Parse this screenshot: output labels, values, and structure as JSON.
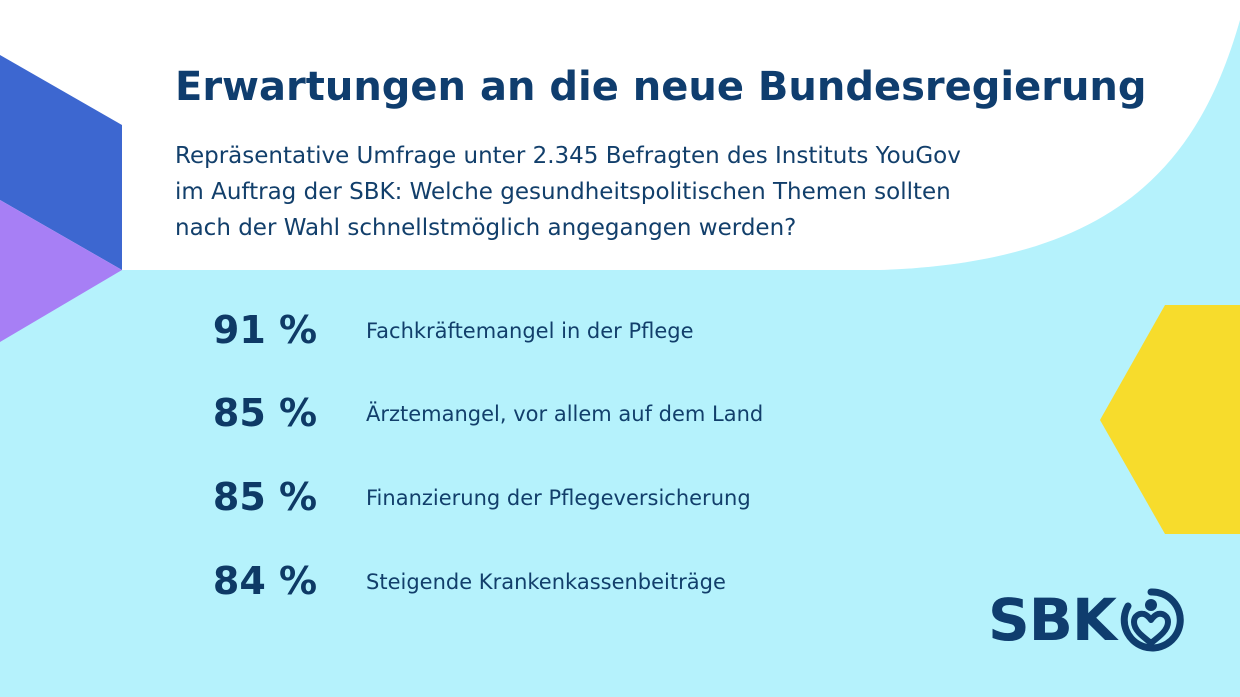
{
  "title": "Erwartungen an die neue Bundesregierung",
  "subtitle_lines": [
    "Repräsentative Umfrage unter 2.345 Befragten des Instituts YouGov",
    "im Auftrag der SBK: Welche gesundheitspolitischen Themen sollten",
    "nach der Wahl schnellstmöglich angegangen werden?"
  ],
  "chart_data": {
    "type": "table",
    "title": "Erwartungen an die neue Bundesregierung",
    "unit": "%",
    "rows": [
      {
        "value": 91,
        "value_label": "91 %",
        "label": "Fachkräftemangel in der Pflege"
      },
      {
        "value": 85,
        "value_label": "85 %",
        "label": "Ärztemangel, vor allem auf dem Land"
      },
      {
        "value": 85,
        "value_label": "85 %",
        "label": "Finanzierung der Pflegeversicherung"
      },
      {
        "value": 84,
        "value_label": "84 %",
        "label": "Steigende Krankenkassenbeiträge"
      }
    ]
  },
  "logo": {
    "text": "SBK",
    "icon": "sbk-heart-person-icon"
  },
  "colors": {
    "background": "#b5f2fc",
    "header_panel": "#ffffff",
    "text": "#0f3d6e",
    "hexagon_blue": "#3d67d0",
    "hexagon_purple": "#a77ff5",
    "hexagon_yellow": "#f7dc2c"
  }
}
